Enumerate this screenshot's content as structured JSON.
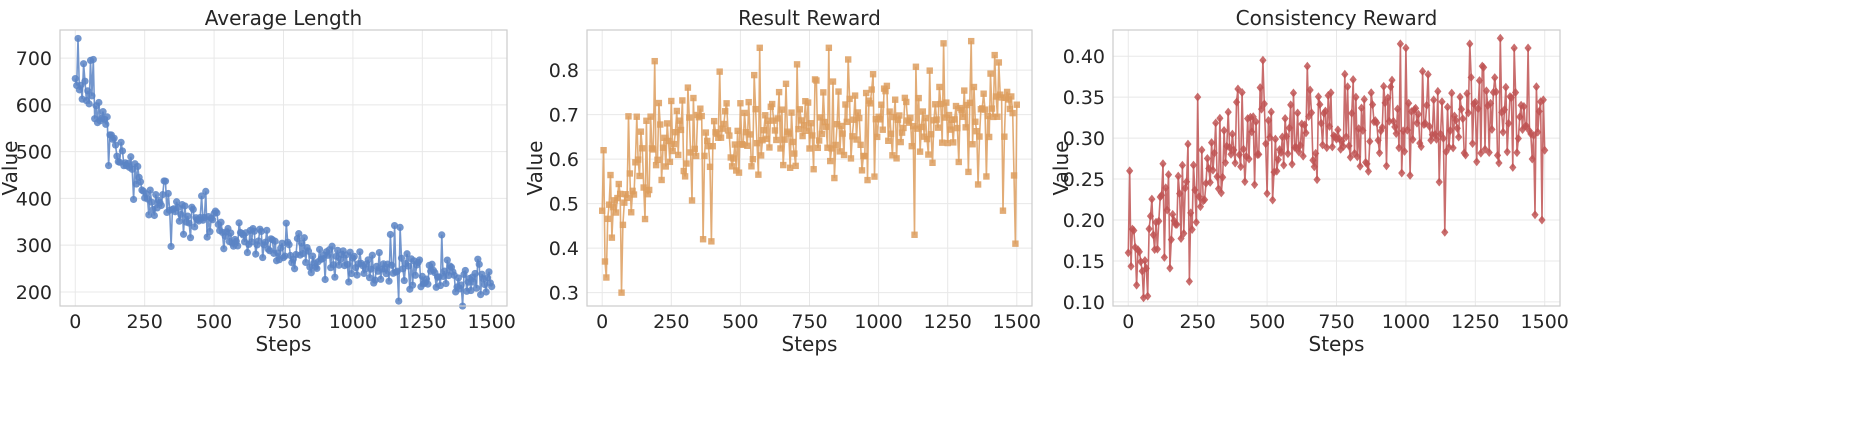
{
  "chart_data": [
    {
      "type": "line",
      "title": "Average Length",
      "xlabel": "Steps",
      "ylabel": "Value",
      "xlim": [
        -55,
        1555
      ],
      "ylim": [
        170,
        760
      ],
      "xticks": [
        0,
        250,
        500,
        750,
        1000,
        1250,
        1500
      ],
      "yticks": [
        200,
        300,
        400,
        500,
        600,
        700
      ],
      "ytick_decimals": 0,
      "grid": true,
      "marker": "circle",
      "color": "#5b84c4",
      "series": [
        {
          "values_by_step_band": [
            {
              "x": 0,
              "y": 650
            },
            {
              "x": 25,
              "y": 635
            },
            {
              "x": 50,
              "y": 615
            },
            {
              "x": 75,
              "y": 600
            },
            {
              "x": 100,
              "y": 570
            },
            {
              "x": 125,
              "y": 530
            },
            {
              "x": 150,
              "y": 500
            },
            {
              "x": 175,
              "y": 475
            },
            {
              "x": 200,
              "y": 450
            },
            {
              "x": 250,
              "y": 410
            },
            {
              "x": 300,
              "y": 390
            },
            {
              "x": 400,
              "y": 370
            },
            {
              "x": 500,
              "y": 345
            },
            {
              "x": 600,
              "y": 320
            },
            {
              "x": 700,
              "y": 300
            },
            {
              "x": 800,
              "y": 285
            },
            {
              "x": 900,
              "y": 270
            },
            {
              "x": 1000,
              "y": 262
            },
            {
              "x": 1100,
              "y": 252
            },
            {
              "x": 1200,
              "y": 245
            },
            {
              "x": 1300,
              "y": 238
            },
            {
              "x": 1400,
              "y": 230
            },
            {
              "x": 1500,
              "y": 225
            }
          ],
          "spread": 18,
          "outliers": [
            {
              "x": 10,
              "y": 742
            },
            {
              "x": 55,
              "y": 695
            },
            {
              "x": 65,
              "y": 697
            },
            {
              "x": 30,
              "y": 688
            },
            {
              "x": 470,
              "y": 415
            },
            {
              "x": 760,
              "y": 347
            },
            {
              "x": 1150,
              "y": 342
            },
            {
              "x": 1170,
              "y": 338
            },
            {
              "x": 1320,
              "y": 322
            },
            {
              "x": 1300,
              "y": 210
            },
            {
              "x": 1480,
              "y": 200
            }
          ]
        }
      ]
    },
    {
      "type": "line",
      "title": "Result Reward",
      "xlabel": "Steps",
      "ylabel": "Value",
      "xlim": [
        -55,
        1555
      ],
      "ylim": [
        0.27,
        0.89
      ],
      "xticks": [
        0,
        250,
        500,
        750,
        1000,
        1250,
        1500
      ],
      "yticks": [
        0.3,
        0.4,
        0.5,
        0.6,
        0.7,
        0.8
      ],
      "ytick_decimals": 1,
      "grid": true,
      "marker": "square",
      "color": "#dd9d5e",
      "series": [
        {
          "values_by_step_band": [
            {
              "x": 0,
              "y": 0.47
            },
            {
              "x": 50,
              "y": 0.49
            },
            {
              "x": 100,
              "y": 0.56
            },
            {
              "x": 150,
              "y": 0.6
            },
            {
              "x": 200,
              "y": 0.62
            },
            {
              "x": 300,
              "y": 0.64
            },
            {
              "x": 400,
              "y": 0.65
            },
            {
              "x": 500,
              "y": 0.66
            },
            {
              "x": 600,
              "y": 0.665
            },
            {
              "x": 700,
              "y": 0.67
            },
            {
              "x": 800,
              "y": 0.675
            },
            {
              "x": 900,
              "y": 0.68
            },
            {
              "x": 1000,
              "y": 0.68
            },
            {
              "x": 1100,
              "y": 0.685
            },
            {
              "x": 1200,
              "y": 0.69
            },
            {
              "x": 1300,
              "y": 0.69
            },
            {
              "x": 1400,
              "y": 0.695
            },
            {
              "x": 1500,
              "y": 0.69
            }
          ],
          "spread": 0.055,
          "outliers": [
            {
              "x": 70,
              "y": 0.3
            },
            {
              "x": 10,
              "y": 0.37
            },
            {
              "x": 190,
              "y": 0.82
            },
            {
              "x": 365,
              "y": 0.42
            },
            {
              "x": 570,
              "y": 0.85
            },
            {
              "x": 820,
              "y": 0.85
            },
            {
              "x": 1130,
              "y": 0.43
            },
            {
              "x": 1235,
              "y": 0.86
            },
            {
              "x": 1335,
              "y": 0.865
            },
            {
              "x": 1495,
              "y": 0.41
            },
            {
              "x": 5,
              "y": 0.62
            }
          ]
        }
      ]
    },
    {
      "type": "line",
      "title": "Consistency Reward",
      "xlabel": "Steps",
      "ylabel": "Value",
      "xlim": [
        -55,
        1555
      ],
      "ylim": [
        0.095,
        0.432
      ],
      "xticks": [
        0,
        250,
        500,
        750,
        1000,
        1250,
        1500
      ],
      "yticks": [
        0.1,
        0.15,
        0.2,
        0.25,
        0.3,
        0.35,
        0.4
      ],
      "ytick_decimals": 2,
      "grid": true,
      "marker": "diamond",
      "color": "#c05454",
      "series": [
        {
          "values_by_step_band": [
            {
              "x": 0,
              "y": 0.155
            },
            {
              "x": 50,
              "y": 0.16
            },
            {
              "x": 100,
              "y": 0.19
            },
            {
              "x": 150,
              "y": 0.215
            },
            {
              "x": 200,
              "y": 0.235
            },
            {
              "x": 300,
              "y": 0.26
            },
            {
              "x": 400,
              "y": 0.28
            },
            {
              "x": 500,
              "y": 0.29
            },
            {
              "x": 600,
              "y": 0.3
            },
            {
              "x": 700,
              "y": 0.305
            },
            {
              "x": 800,
              "y": 0.31
            },
            {
              "x": 900,
              "y": 0.315
            },
            {
              "x": 1000,
              "y": 0.315
            },
            {
              "x": 1100,
              "y": 0.32
            },
            {
              "x": 1200,
              "y": 0.32
            },
            {
              "x": 1300,
              "y": 0.325
            },
            {
              "x": 1400,
              "y": 0.325
            },
            {
              "x": 1500,
              "y": 0.325
            }
          ],
          "spread": 0.03,
          "outliers": [
            {
              "x": 5,
              "y": 0.26
            },
            {
              "x": 55,
              "y": 0.105
            },
            {
              "x": 70,
              "y": 0.107
            },
            {
              "x": 250,
              "y": 0.35
            },
            {
              "x": 485,
              "y": 0.395
            },
            {
              "x": 980,
              "y": 0.415
            },
            {
              "x": 1000,
              "y": 0.41
            },
            {
              "x": 1140,
              "y": 0.185
            },
            {
              "x": 1230,
              "y": 0.415
            },
            {
              "x": 1340,
              "y": 0.422
            },
            {
              "x": 1390,
              "y": 0.41
            },
            {
              "x": 1490,
              "y": 0.2
            },
            {
              "x": 1440,
              "y": 0.41
            }
          ]
        }
      ]
    }
  ]
}
